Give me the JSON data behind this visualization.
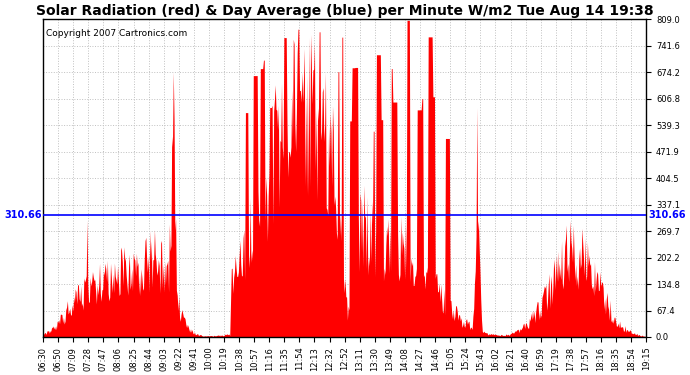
{
  "title": "Solar Radiation (red) & Day Average (blue) per Minute W/m2 Tue Aug 14 19:38",
  "copyright": "Copyright 2007 Cartronics.com",
  "y_min": 0.0,
  "y_max": 809.0,
  "y_ticks": [
    0.0,
    67.4,
    134.8,
    202.2,
    269.7,
    337.1,
    404.5,
    471.9,
    539.3,
    606.8,
    674.2,
    741.6,
    809.0
  ],
  "day_average": 310.66,
  "avg_label": "310.66",
  "x_tick_labels": [
    "06:30",
    "06:50",
    "07:09",
    "07:28",
    "07:47",
    "08:06",
    "08:25",
    "08:44",
    "09:03",
    "09:22",
    "09:41",
    "10:00",
    "10:19",
    "10:38",
    "10:57",
    "11:16",
    "11:35",
    "11:54",
    "12:13",
    "12:32",
    "12:52",
    "13:11",
    "13:30",
    "13:49",
    "14:08",
    "14:27",
    "14:46",
    "15:05",
    "15:24",
    "15:43",
    "16:02",
    "16:21",
    "16:40",
    "16:59",
    "17:19",
    "17:38",
    "17:57",
    "18:16",
    "18:35",
    "18:54",
    "19:15"
  ],
  "fill_color": "#FF0000",
  "line_color": "#0000FF",
  "bg_color": "#FFFFFF",
  "grid_color": "#C0C0C0",
  "title_fontsize": 10,
  "copyright_fontsize": 6.5,
  "avg_label_fontsize": 7,
  "tick_label_fontsize": 6,
  "n_points": 770
}
